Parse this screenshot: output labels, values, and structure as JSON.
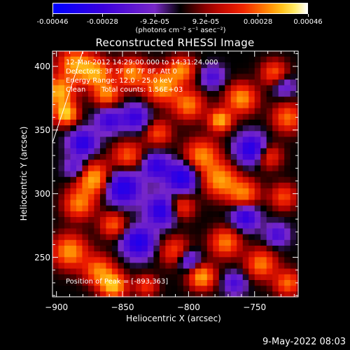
{
  "chart_data": {
    "type": "heatmap",
    "title": "Reconstructed RHESSI Image",
    "xlabel": "Heliocentric X (arcsec)",
    "ylabel": "Heliocentric Y (arcsec)",
    "xlim": [
      -903,
      -717
    ],
    "ylim": [
      219,
      412
    ],
    "x_ticks": [
      -900,
      -850,
      -800,
      -750
    ],
    "y_ticks": [
      250,
      300,
      350,
      400
    ],
    "colorbar": {
      "colormap": "rhessi-color-table-5",
      "range": [
        -0.00046,
        0.00046
      ],
      "tick_labels": [
        "-0.00046",
        "-0.00028",
        "-9.2e-05",
        "9.2e-05",
        "0.00028",
        "0.00046"
      ],
      "tick_values": [
        -0.00046,
        -0.00028,
        -9.2e-05,
        9.2e-05,
        0.00028,
        0.00046
      ],
      "units_label": "(photons cm⁻² s⁻¹ asec⁻²)"
    },
    "annotations": {
      "time_range": "12-Mar-2012 14:29:00.000 to 14:31:24.000",
      "detectors": "Detectors: 3F 5F 6F 7F 8F, Att 0",
      "energy_range": "Energy Range: 12.0 - 25.0 keV",
      "algorithm": "Clean",
      "total_counts": "Total counts: 1.56E+03",
      "peak_position": "Position of Peak = [-893,363]"
    },
    "peak": [
      -893,
      363
    ],
    "hot_spots": [
      {
        "x": -893,
        "y": 363,
        "v": 1.0,
        "r": 6
      },
      {
        "x": -898,
        "y": 380,
        "v": 0.9,
        "r": 8
      },
      {
        "x": -886,
        "y": 402,
        "v": 0.8,
        "r": 9
      },
      {
        "x": -870,
        "y": 395,
        "v": 0.8,
        "r": 8
      },
      {
        "x": -862,
        "y": 378,
        "v": 0.7,
        "r": 7
      },
      {
        "x": -843,
        "y": 395,
        "v": 0.75,
        "r": 8
      },
      {
        "x": -820,
        "y": 385,
        "v": 0.85,
        "r": 9
      },
      {
        "x": -805,
        "y": 398,
        "v": 0.7,
        "r": 7
      },
      {
        "x": -800,
        "y": 370,
        "v": 0.7,
        "r": 8
      },
      {
        "x": -776,
        "y": 358,
        "v": 0.9,
        "r": 6
      },
      {
        "x": -760,
        "y": 375,
        "v": 0.8,
        "r": 8
      },
      {
        "x": -735,
        "y": 395,
        "v": 0.6,
        "r": 7
      },
      {
        "x": -725,
        "y": 360,
        "v": 0.65,
        "r": 8
      },
      {
        "x": -872,
        "y": 312,
        "v": 0.9,
        "r": 9
      },
      {
        "x": -883,
        "y": 292,
        "v": 0.7,
        "r": 8
      },
      {
        "x": -846,
        "y": 330,
        "v": 0.6,
        "r": 8
      },
      {
        "x": -823,
        "y": 348,
        "v": 0.55,
        "r": 7
      },
      {
        "x": -790,
        "y": 330,
        "v": 0.75,
        "r": 9
      },
      {
        "x": -776,
        "y": 311,
        "v": 0.8,
        "r": 9
      },
      {
        "x": -758,
        "y": 300,
        "v": 0.7,
        "r": 8
      },
      {
        "x": -740,
        "y": 330,
        "v": 0.6,
        "r": 7
      },
      {
        "x": -728,
        "y": 298,
        "v": 0.55,
        "r": 7
      },
      {
        "x": -806,
        "y": 290,
        "v": 0.6,
        "r": 7
      },
      {
        "x": -857,
        "y": 276,
        "v": 0.6,
        "r": 7
      },
      {
        "x": -890,
        "y": 255,
        "v": 0.8,
        "r": 9
      },
      {
        "x": -868,
        "y": 240,
        "v": 0.7,
        "r": 8
      },
      {
        "x": -857,
        "y": 228,
        "v": 0.95,
        "r": 7
      },
      {
        "x": -810,
        "y": 255,
        "v": 0.55,
        "r": 8
      },
      {
        "x": -790,
        "y": 235,
        "v": 0.85,
        "r": 7
      },
      {
        "x": -772,
        "y": 262,
        "v": 0.7,
        "r": 8
      },
      {
        "x": -745,
        "y": 245,
        "v": 0.7,
        "r": 8
      },
      {
        "x": -725,
        "y": 230,
        "v": 0.65,
        "r": 7
      },
      {
        "x": -832,
        "y": 228,
        "v": 0.5,
        "r": 6
      }
    ],
    "cold_spots": [
      {
        "x": -880,
        "y": 340,
        "v": -0.8,
        "r": 7
      },
      {
        "x": -850,
        "y": 305,
        "v": -0.9,
        "r": 9
      },
      {
        "x": -825,
        "y": 322,
        "v": -0.7,
        "r": 7
      },
      {
        "x": -805,
        "y": 313,
        "v": -0.9,
        "r": 8
      },
      {
        "x": -820,
        "y": 287,
        "v": -0.85,
        "r": 8
      },
      {
        "x": -838,
        "y": 262,
        "v": -0.9,
        "r": 8
      },
      {
        "x": -757,
        "y": 282,
        "v": -0.75,
        "r": 7
      },
      {
        "x": -752,
        "y": 335,
        "v": -0.9,
        "r": 8
      },
      {
        "x": -860,
        "y": 358,
        "v": -0.6,
        "r": 7
      },
      {
        "x": -885,
        "y": 320,
        "v": -0.5,
        "r": 6
      },
      {
        "x": -782,
        "y": 392,
        "v": -0.5,
        "r": 6
      },
      {
        "x": -800,
        "y": 248,
        "v": -0.6,
        "r": 6
      },
      {
        "x": -765,
        "y": 230,
        "v": -0.5,
        "r": 6
      },
      {
        "x": -733,
        "y": 268,
        "v": -0.5,
        "r": 6
      },
      {
        "x": -840,
        "y": 360,
        "v": -0.65,
        "r": 7
      },
      {
        "x": -728,
        "y": 385,
        "v": -0.4,
        "r": 6
      }
    ]
  },
  "timestamp": "9-May-2022 08:03"
}
